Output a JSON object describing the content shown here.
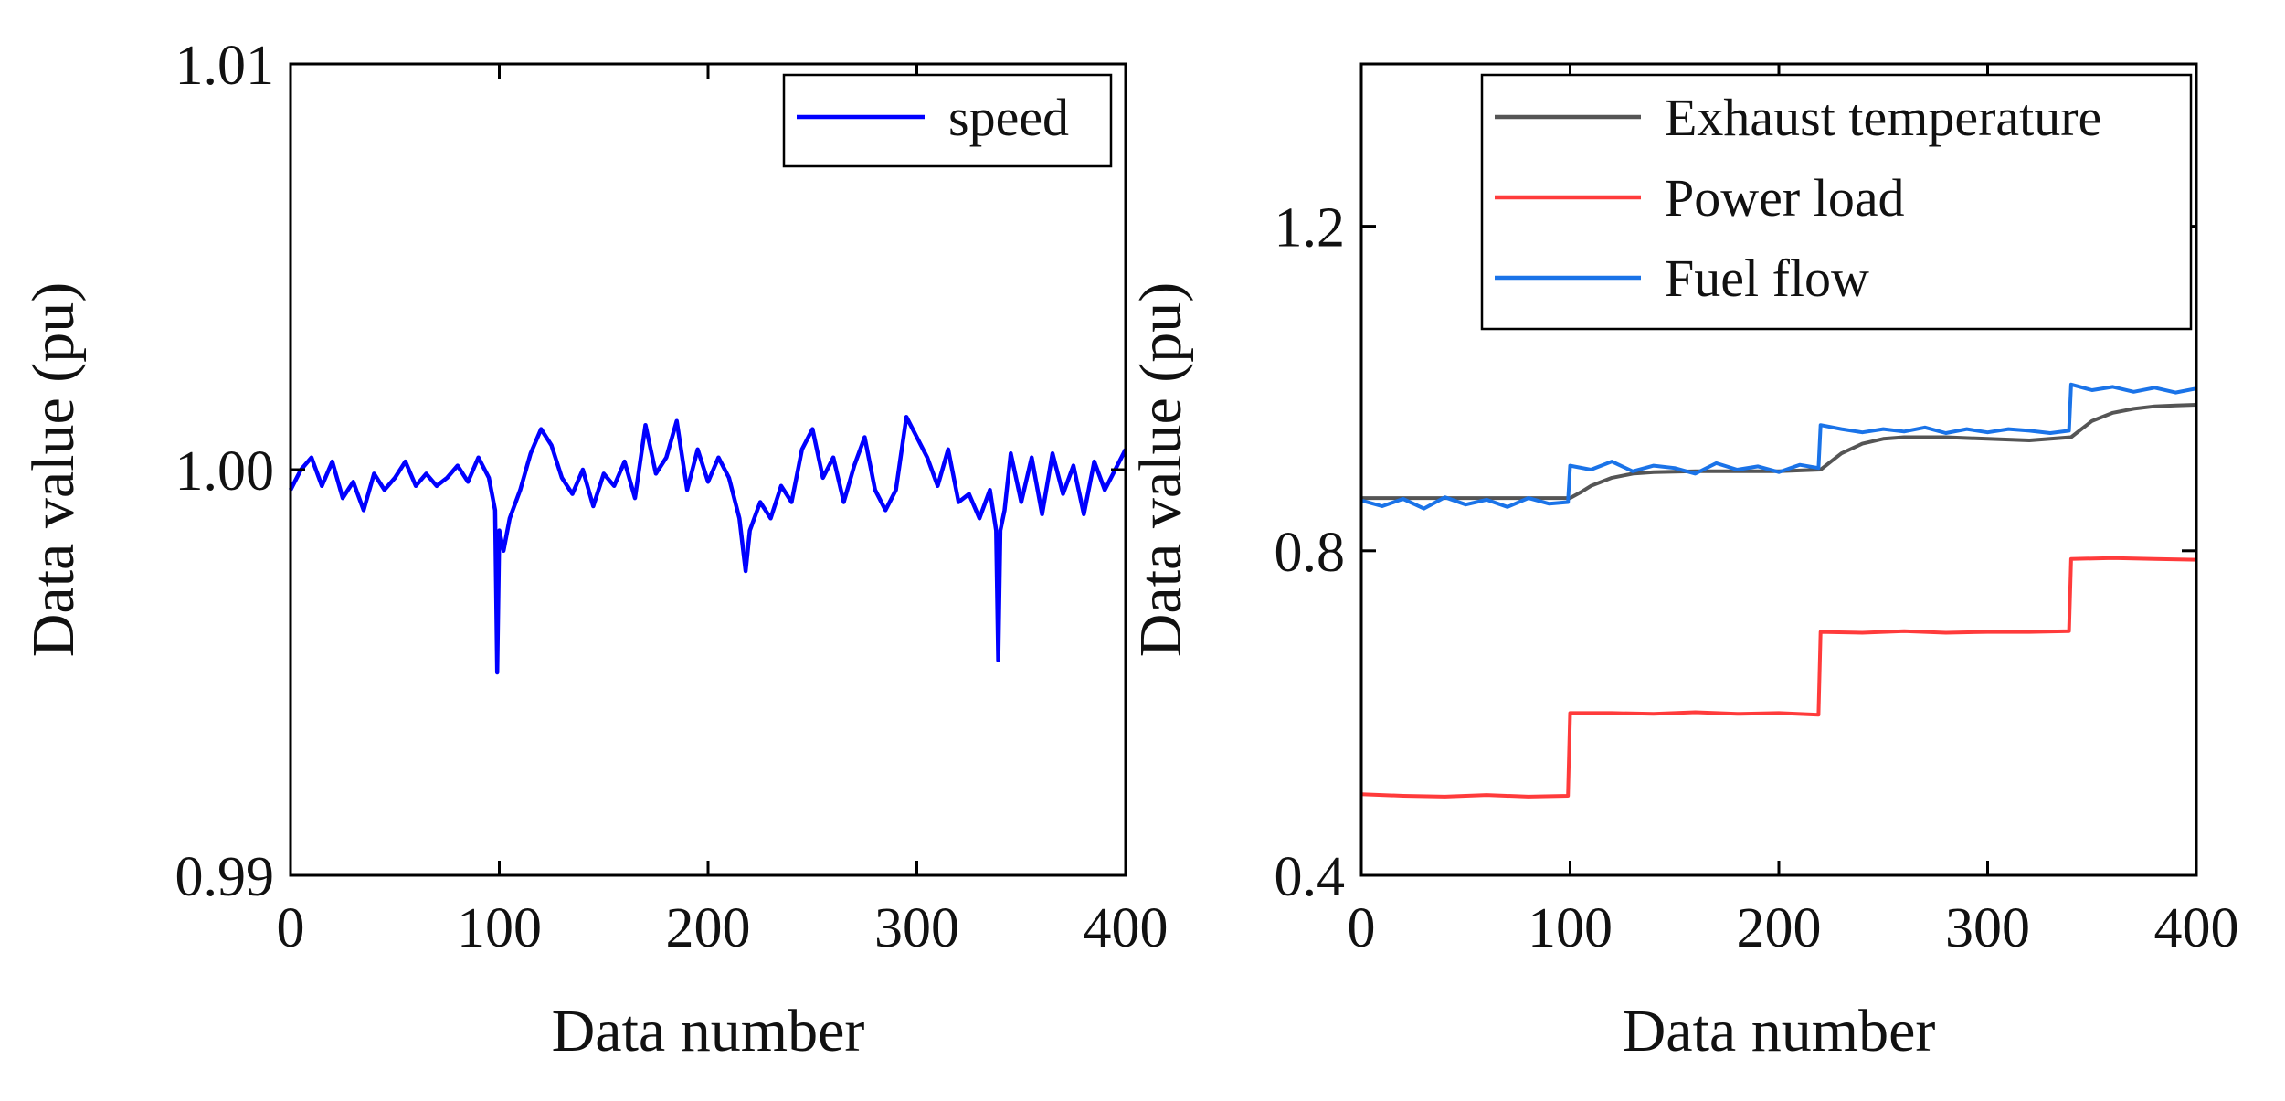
{
  "chart_data": [
    {
      "type": "line",
      "title": "",
      "xlabel": "Data number",
      "ylabel": "Data value (pu)",
      "xlim": [
        0,
        400
      ],
      "ylim": [
        0.99,
        1.01
      ],
      "xticks": [
        0,
        100,
        200,
        300,
        400
      ],
      "xtick_labels": [
        "0",
        "100",
        "200",
        "300",
        "400"
      ],
      "yticks": [
        0.99,
        1.0,
        1.01
      ],
      "ytick_labels": [
        "0.99",
        "1.00",
        "1.01"
      ],
      "grid": false,
      "legend_position": "top-right",
      "series": [
        {
          "name": "speed",
          "color": "#0000ff",
          "x": [
            0,
            5,
            10,
            15,
            20,
            25,
            30,
            35,
            40,
            45,
            50,
            55,
            60,
            65,
            70,
            75,
            80,
            85,
            90,
            95,
            98,
            99,
            100,
            102,
            105,
            110,
            115,
            120,
            125,
            130,
            135,
            140,
            145,
            150,
            155,
            160,
            165,
            170,
            175,
            180,
            185,
            190,
            195,
            200,
            205,
            210,
            215,
            218,
            220,
            225,
            230,
            235,
            240,
            245,
            250,
            255,
            260,
            265,
            270,
            275,
            280,
            285,
            290,
            295,
            300,
            305,
            310,
            315,
            320,
            325,
            330,
            335,
            338,
            339,
            340,
            342,
            345,
            350,
            355,
            360,
            365,
            370,
            375,
            380,
            385,
            390,
            395,
            400
          ],
          "values": [
            0.9995,
            1.0,
            1.0003,
            0.9996,
            1.0002,
            0.9993,
            0.9997,
            0.999,
            0.9999,
            0.9995,
            0.9998,
            1.0002,
            0.9996,
            0.9999,
            0.9996,
            0.9998,
            1.0001,
            0.9997,
            1.0003,
            0.9998,
            0.999,
            0.995,
            0.9985,
            0.998,
            0.9988,
            0.9995,
            1.0004,
            1.001,
            1.0006,
            0.9998,
            0.9994,
            1.0,
            0.9991,
            0.9999,
            0.9996,
            1.0002,
            0.9993,
            1.0011,
            0.9999,
            1.0003,
            1.0012,
            0.9995,
            1.0005,
            0.9997,
            1.0003,
            0.9998,
            0.9988,
            0.9975,
            0.9985,
            0.9992,
            0.9988,
            0.9996,
            0.9992,
            1.0005,
            1.001,
            0.9998,
            1.0003,
            0.9992,
            1.0001,
            1.0008,
            0.9995,
            0.999,
            0.9995,
            1.0013,
            1.0008,
            1.0003,
            0.9996,
            1.0005,
            0.9992,
            0.9994,
            0.9988,
            0.9995,
            0.9985,
            0.9953,
            0.9985,
            0.999,
            1.0004,
            0.9992,
            1.0003,
            0.9989,
            1.0004,
            0.9994,
            1.0001,
            0.9989,
            1.0002,
            0.9995,
            1.0,
            1.0005
          ]
        }
      ]
    },
    {
      "type": "line",
      "title": "",
      "xlabel": "Data number",
      "ylabel": "Data value (pu)",
      "xlim": [
        0,
        400
      ],
      "ylim": [
        0.4,
        1.4
      ],
      "xticks": [
        0,
        100,
        200,
        300,
        400
      ],
      "xtick_labels": [
        "0",
        "100",
        "200",
        "300",
        "400"
      ],
      "yticks": [
        0.4,
        0.8,
        1.2
      ],
      "ytick_labels": [
        "0.4",
        "0.8",
        "1.2"
      ],
      "grid": false,
      "legend_position": "top-right",
      "series": [
        {
          "name": "Exhaust temperature",
          "color": "#555555",
          "x": [
            0,
            20,
            40,
            60,
            80,
            100,
            105,
            110,
            120,
            130,
            140,
            160,
            180,
            200,
            220,
            225,
            230,
            240,
            250,
            260,
            280,
            300,
            320,
            340,
            345,
            350,
            360,
            370,
            380,
            390,
            400
          ],
          "values": [
            0.865,
            0.865,
            0.865,
            0.865,
            0.865,
            0.865,
            0.872,
            0.88,
            0.89,
            0.895,
            0.897,
            0.898,
            0.898,
            0.898,
            0.9,
            0.91,
            0.92,
            0.932,
            0.938,
            0.94,
            0.94,
            0.938,
            0.936,
            0.94,
            0.95,
            0.96,
            0.97,
            0.975,
            0.978,
            0.979,
            0.98
          ]
        },
        {
          "name": "Power load",
          "color": "#ff3b3b",
          "x": [
            0,
            20,
            40,
            60,
            80,
            99,
            100,
            120,
            140,
            160,
            180,
            200,
            219,
            220,
            240,
            260,
            280,
            300,
            320,
            339,
            340,
            360,
            380,
            400
          ],
          "values": [
            0.5,
            0.498,
            0.497,
            0.499,
            0.497,
            0.498,
            0.6,
            0.6,
            0.599,
            0.601,
            0.599,
            0.6,
            0.598,
            0.7,
            0.699,
            0.701,
            0.699,
            0.7,
            0.7,
            0.701,
            0.79,
            0.791,
            0.79,
            0.789
          ]
        },
        {
          "name": "Fuel flow",
          "color": "#1a73e8",
          "x": [
            0,
            10,
            20,
            30,
            40,
            50,
            60,
            70,
            80,
            90,
            99,
            100,
            110,
            120,
            130,
            140,
            150,
            160,
            170,
            180,
            190,
            200,
            210,
            219,
            220,
            230,
            240,
            250,
            260,
            270,
            280,
            290,
            300,
            310,
            320,
            330,
            339,
            340,
            350,
            360,
            370,
            380,
            390,
            400
          ],
          "values": [
            0.862,
            0.855,
            0.864,
            0.852,
            0.866,
            0.857,
            0.863,
            0.854,
            0.865,
            0.858,
            0.86,
            0.905,
            0.9,
            0.91,
            0.898,
            0.905,
            0.902,
            0.895,
            0.908,
            0.9,
            0.904,
            0.897,
            0.906,
            0.902,
            0.955,
            0.95,
            0.946,
            0.95,
            0.947,
            0.952,
            0.945,
            0.95,
            0.946,
            0.95,
            0.948,
            0.945,
            0.948,
            1.005,
            0.998,
            1.002,
            0.996,
            1.001,
            0.995,
            1.0
          ]
        }
      ]
    }
  ]
}
